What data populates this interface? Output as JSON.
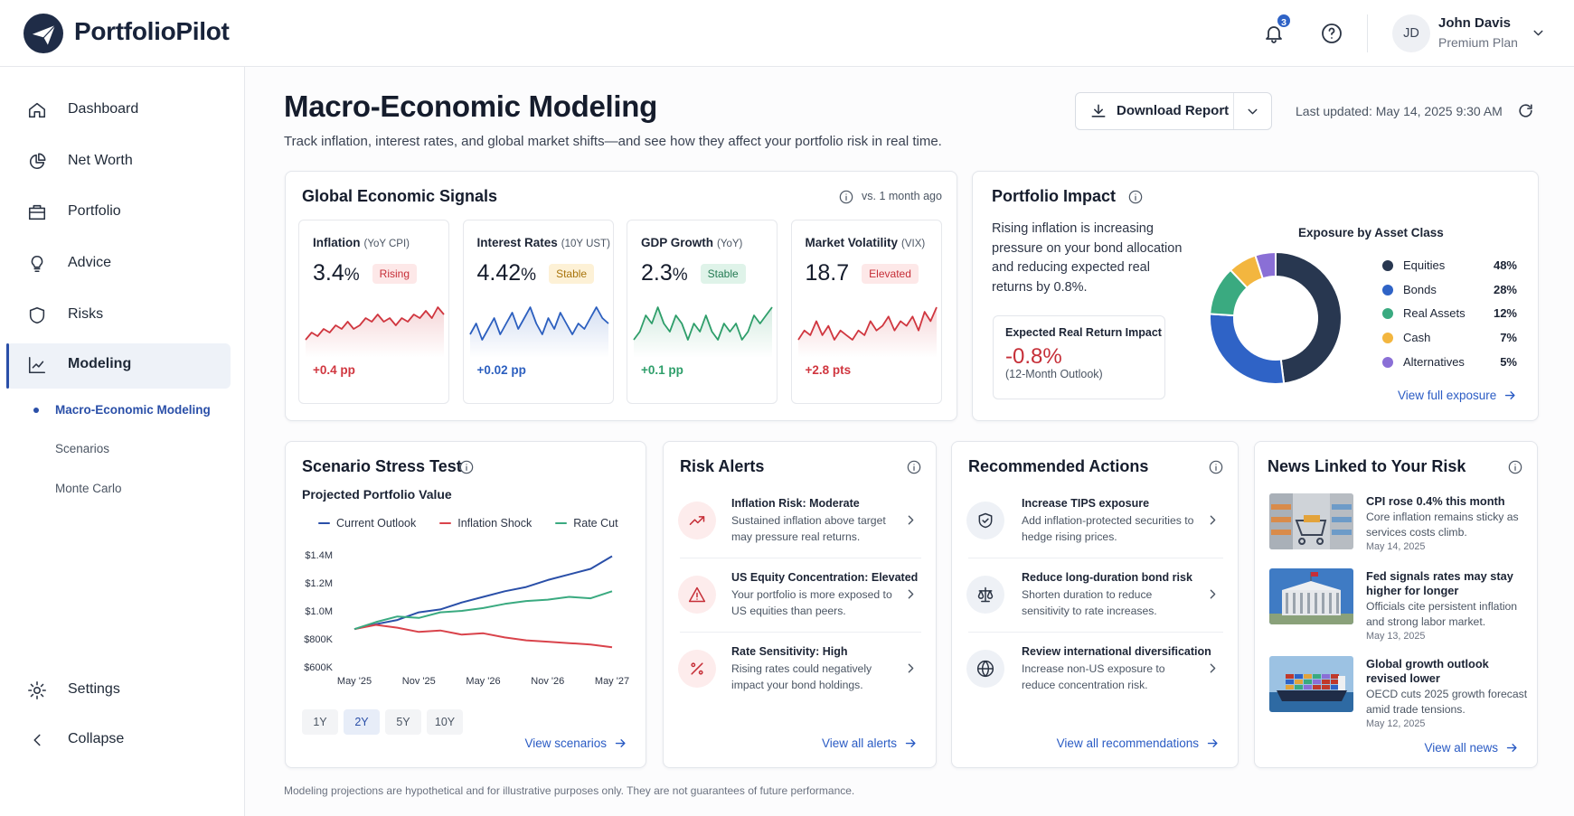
{
  "header": {
    "logo": "PortfolioPilot",
    "notifications": 3,
    "user": {
      "initials": "JD",
      "name": "John Davis",
      "plan": "Premium Plan"
    }
  },
  "sidebar": {
    "nav": [
      "Dashboard",
      "Net Worth",
      "Portfolio",
      "Advice",
      "Risks",
      "Modeling"
    ],
    "active_nav": 5,
    "sub": [
      "Macro-Economic Modeling",
      "Scenarios",
      "Monte Carlo"
    ],
    "active_sub": 0,
    "bottom": [
      "Settings",
      "Collapse"
    ]
  },
  "page": {
    "title": "Macro-Economic Modeling",
    "subtitle": "Track inflation, interest rates, and global market shifts—and see how they affect your portfolio risk in real time.",
    "download": "Download Report",
    "updated": "Last updated: May 14, 2025 9:30 AM"
  },
  "signals": {
    "title": "Global Economic Signals",
    "compare": "vs. 1 month ago",
    "items": [
      {
        "name": "Inflation",
        "unit": "(YoY CPI)",
        "value": "3.4",
        "suffix": "%",
        "status": "Rising",
        "badge_tone": "red",
        "change": "+0.4 pp",
        "color": "#d0363f",
        "trend": [
          3,
          5,
          4,
          6,
          5,
          7,
          6,
          8,
          6,
          7,
          9,
          8,
          10,
          8,
          9,
          7,
          9,
          8,
          10,
          9,
          11,
          9,
          12,
          10
        ]
      },
      {
        "name": "Interest Rates",
        "unit": "(10Y UST)",
        "value": "4.42",
        "suffix": "%",
        "status": "Stable",
        "badge_tone": "amber",
        "change": "+0.02 pp",
        "color": "#2c5fbf",
        "trend": [
          5,
          7,
          4,
          6,
          8,
          5,
          7,
          9,
          6,
          8,
          10,
          7,
          5,
          8,
          6,
          9,
          7,
          5,
          7,
          6,
          8,
          10,
          8,
          7
        ]
      },
      {
        "name": "GDP Growth",
        "unit": "(YoY)",
        "value": "2.3",
        "suffix": "%",
        "status": "Stable",
        "badge_tone": "green",
        "change": "+0.1 pp",
        "color": "#2e9e6a",
        "trend": [
          5,
          6,
          8,
          7,
          9,
          7,
          6,
          8,
          7,
          5,
          7,
          6,
          8,
          6,
          5,
          7,
          6,
          7,
          5,
          6,
          8,
          7,
          8,
          9
        ]
      },
      {
        "name": "Market Volatility",
        "unit": "(VIX)",
        "value": "18.7",
        "status": "Elevated",
        "badge_tone": "red",
        "change": "+2.8 pts",
        "color": "#d0363f",
        "trend": [
          4,
          6,
          5,
          8,
          5,
          7,
          4,
          6,
          5,
          4,
          6,
          5,
          8,
          6,
          7,
          9,
          6,
          8,
          7,
          9,
          6,
          10,
          8,
          11
        ]
      }
    ]
  },
  "impact": {
    "title": "Portfolio Impact",
    "text": "Rising inflation is increasing pressure on your bond allocation and reducing expected real returns by 0.8%.",
    "metric_label": "Expected Real Return Impact",
    "metric": "-0.8%",
    "metric_note": "(12-Month Outlook)",
    "link": "View full exposure"
  },
  "chart_data": [
    {
      "type": "donut",
      "title": "Exposure by Asset Class",
      "categories": [
        "Equities",
        "Bonds",
        "Real Assets",
        "Cash",
        "Alternatives"
      ],
      "values": [
        48,
        28,
        12,
        7,
        5
      ],
      "value_labels": [
        "48%",
        "28%",
        "12%",
        "7%",
        "5%"
      ],
      "colors": [
        "#283750",
        "#2f63c6",
        "#3aaa80",
        "#f3b63f",
        "#8a6fd6"
      ]
    },
    {
      "type": "line",
      "title": "Projected Portfolio Value",
      "categories": [
        "May '25",
        null,
        null,
        "Nov '25",
        null,
        null,
        "May '26",
        null,
        null,
        "Nov '26",
        null,
        null,
        "May '27"
      ],
      "series": [
        {
          "name": "Current Outlook",
          "color": "#2a4fa8",
          "values": [
            870000,
            905000,
            935000,
            990000,
            1010000,
            1060000,
            1100000,
            1140000,
            1170000,
            1220000,
            1260000,
            1300000,
            1390000
          ]
        },
        {
          "name": "Inflation Shock",
          "color": "#d9434b",
          "values": [
            870000,
            900000,
            880000,
            850000,
            860000,
            830000,
            840000,
            810000,
            790000,
            780000,
            770000,
            760000,
            740000
          ]
        },
        {
          "name": "Rate Cut",
          "color": "#3aaa80",
          "values": [
            870000,
            920000,
            960000,
            950000,
            990000,
            1000000,
            1020000,
            1050000,
            1070000,
            1080000,
            1100000,
            1090000,
            1140000
          ]
        }
      ],
      "ylim": [
        600000,
        1400000
      ],
      "yticks": [
        {
          "value": 600000,
          "label": "$600K"
        },
        {
          "value": 800000,
          "label": "$800K"
        },
        {
          "value": 1000000,
          "label": "$1.0M"
        },
        {
          "value": 1200000,
          "label": "$1.2M"
        },
        {
          "value": 1400000,
          "label": "$1.4M"
        }
      ],
      "grid": false
    }
  ],
  "stress": {
    "title": "Scenario Stress Test",
    "ranges": [
      "1Y",
      "2Y",
      "5Y",
      "10Y"
    ],
    "active_range": 1,
    "link": "View scenarios"
  },
  "alerts": {
    "title": "Risk Alerts",
    "link": "View all alerts",
    "items": [
      {
        "title": "Inflation Risk: Moderate",
        "text": "Sustained inflation above target may pressure real returns."
      },
      {
        "title": "US Equity Concentration: Elevated",
        "text": "Your portfolio is more exposed to US equities than peers."
      },
      {
        "title": "Rate Sensitivity: High",
        "text": "Rising rates could negatively impact your bond holdings."
      }
    ]
  },
  "actions": {
    "title": "Recommended Actions",
    "link": "View all recommendations",
    "items": [
      {
        "title": "Increase TIPS exposure",
        "text": "Add inflation-protected securities to hedge rising prices."
      },
      {
        "title": "Reduce long-duration bond risk",
        "text": "Shorten duration to reduce sensitivity to rate increases."
      },
      {
        "title": "Review international diversification",
        "text": "Increase non-US exposure to reduce concentration risk."
      }
    ]
  },
  "news": {
    "title": "News Linked to Your Risk",
    "link": "View all news",
    "items": [
      {
        "title": "CPI rose 0.4% this month",
        "text": "Core inflation remains sticky as services costs climb.",
        "date": "May 14, 2025"
      },
      {
        "title": "Fed signals rates may stay higher for longer",
        "text": "Officials cite persistent inflation and strong labor market.",
        "date": "May 13, 2025"
      },
      {
        "title": "Global growth outlook revised lower",
        "text": "OECD cuts 2025 growth forecast amid trade tensions.",
        "date": "May 12, 2025"
      }
    ]
  },
  "footer": "Modeling projections are hypothetical and for illustrative purposes only. They are not guarantees of future performance."
}
